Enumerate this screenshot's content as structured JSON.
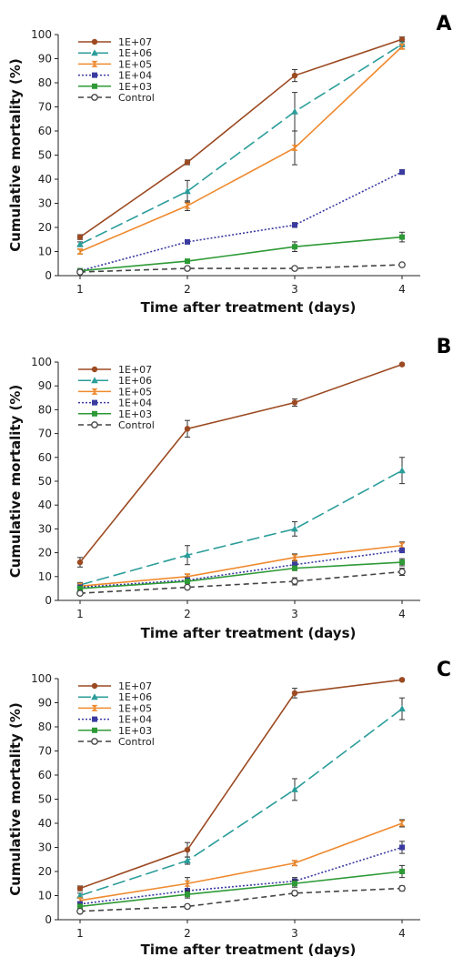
{
  "colors": {
    "1E+07": "#9c4a22",
    "1E+06": "#2a9d9a",
    "1E+05": "#ef8a2e",
    "1E+04": "#3a3aa0",
    "1E+03": "#2e9a36",
    "Control": "#444444"
  },
  "chart_data": [
    {
      "type": "line",
      "panel_label": "A",
      "xlabel": "Time after treatment (days)",
      "ylabel": "Cumulative mortality (%)",
      "x": [
        1,
        2,
        3,
        4
      ],
      "x_ticks": [
        "1",
        "2",
        "3",
        "4"
      ],
      "ylim": [
        0,
        100
      ],
      "y_ticks": [
        "0",
        "10",
        "20",
        "30",
        "40",
        "50",
        "60",
        "70",
        "80",
        "90",
        "100"
      ],
      "legend_position": "top-left",
      "series": [
        {
          "name": "1E+07",
          "values": [
            16,
            47,
            83,
            98
          ],
          "errors": [
            1,
            1,
            2.5,
            1
          ]
        },
        {
          "name": "1E+06",
          "values": [
            13,
            35,
            68,
            96
          ],
          "errors": [
            1,
            4.5,
            8,
            1
          ]
        },
        {
          "name": "1E+05",
          "values": [
            10,
            29,
            53,
            95
          ],
          "errors": [
            1,
            2,
            7,
            1
          ]
        },
        {
          "name": "1E+04",
          "values": [
            2,
            14,
            21,
            43
          ],
          "errors": [
            0.5,
            0.5,
            1,
            1
          ]
        },
        {
          "name": "1E+03",
          "values": [
            2,
            6,
            12,
            16
          ],
          "errors": [
            0.5,
            0.5,
            2,
            2
          ]
        },
        {
          "name": "Control",
          "values": [
            1.5,
            3,
            3,
            4.5
          ],
          "errors": [
            0.5,
            0.5,
            0.5,
            0.5
          ]
        }
      ]
    },
    {
      "type": "line",
      "panel_label": "B",
      "xlabel": "Time after treatment (days)",
      "ylabel": "Cumulative mortality (%)",
      "x": [
        1,
        2,
        3,
        4
      ],
      "x_ticks": [
        "1",
        "2",
        "3",
        "4"
      ],
      "ylim": [
        0,
        100
      ],
      "y_ticks": [
        "0",
        "10",
        "20",
        "30",
        "40",
        "50",
        "60",
        "70",
        "80",
        "90",
        "100"
      ],
      "legend_position": "top-left",
      "series": [
        {
          "name": "1E+07",
          "values": [
            16,
            72,
            83,
            99
          ],
          "errors": [
            2,
            3.5,
            1.5,
            0.5
          ]
        },
        {
          "name": "1E+06",
          "values": [
            6.5,
            19,
            30,
            54.5
          ],
          "errors": [
            1,
            4,
            3,
            5.5
          ]
        },
        {
          "name": "1E+05",
          "values": [
            6,
            10,
            18,
            23
          ],
          "errors": [
            1,
            1,
            1.5,
            1.5
          ]
        },
        {
          "name": "1E+04",
          "values": [
            5.5,
            8.5,
            15,
            21
          ],
          "errors": [
            1,
            1,
            1,
            1
          ]
        },
        {
          "name": "1E+03",
          "values": [
            5,
            8,
            13.5,
            16
          ],
          "errors": [
            1,
            1,
            1,
            1.5
          ]
        },
        {
          "name": "Control",
          "values": [
            3,
            5.5,
            8,
            12
          ],
          "errors": [
            0.5,
            0.5,
            1.5,
            1.5
          ]
        }
      ]
    },
    {
      "type": "line",
      "panel_label": "C",
      "xlabel": "Time after treatment (days)",
      "ylabel": "Cumulative mortality (%)",
      "x": [
        1,
        2,
        3,
        4
      ],
      "x_ticks": [
        "1",
        "2",
        "3",
        "4"
      ],
      "ylim": [
        0,
        100
      ],
      "y_ticks": [
        "0",
        "10",
        "20",
        "30",
        "40",
        "50",
        "60",
        "70",
        "80",
        "90",
        "100"
      ],
      "legend_position": "top-left",
      "series": [
        {
          "name": "1E+07",
          "values": [
            13,
            29,
            94,
            99.5
          ],
          "errors": [
            1,
            3,
            2,
            0.5
          ]
        },
        {
          "name": "1E+06",
          "values": [
            10,
            24.5,
            54,
            87.5
          ],
          "errors": [
            1,
            1.5,
            4.5,
            4.5
          ]
        },
        {
          "name": "1E+05",
          "values": [
            8,
            15,
            23.5,
            40
          ],
          "errors": [
            1,
            2.5,
            1,
            1.5
          ]
        },
        {
          "name": "1E+04",
          "values": [
            6.5,
            12,
            16,
            30
          ],
          "errors": [
            1,
            1,
            1.5,
            2.5
          ]
        },
        {
          "name": "1E+03",
          "values": [
            5.5,
            10.5,
            15,
            20
          ],
          "errors": [
            1,
            1.5,
            1.5,
            2.5
          ]
        },
        {
          "name": "Control",
          "values": [
            3.5,
            5.5,
            11,
            13
          ],
          "errors": [
            0.5,
            0.5,
            1,
            1
          ]
        }
      ]
    }
  ]
}
